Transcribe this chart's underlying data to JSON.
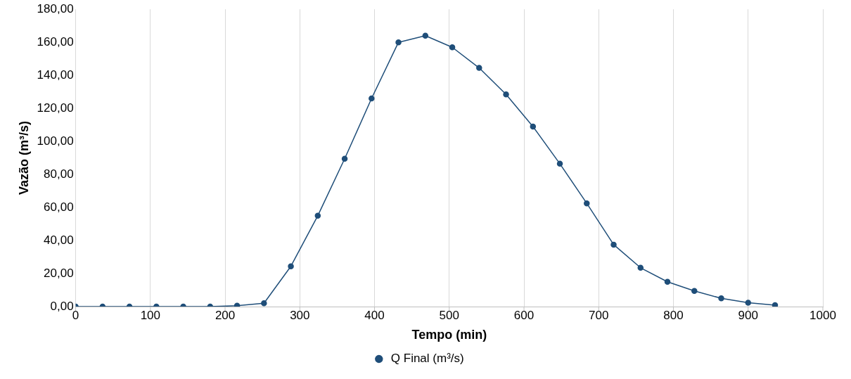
{
  "chart_data": {
    "type": "line",
    "xlabel": "Tempo (min)",
    "ylabel": "Vazão (m³/s)",
    "x": [
      0,
      36,
      72,
      108,
      144,
      180,
      216,
      252,
      288,
      324,
      360,
      396,
      432,
      468,
      504,
      540,
      576,
      612,
      648,
      684,
      720,
      756,
      792,
      828,
      864,
      900,
      936
    ],
    "series": [
      {
        "name": "Q Final (m³/s)",
        "color": "#1f4e79",
        "values": [
          0,
          0,
          0,
          0,
          0,
          0,
          0.5,
          2,
          24.4,
          55,
          89.5,
          126,
          160,
          164,
          157,
          144.5,
          128.5,
          109,
          86.5,
          62.5,
          37.5,
          23.5,
          15,
          9.5,
          5,
          2.3,
          0.9
        ]
      }
    ],
    "xlim": [
      0,
      1000
    ],
    "xticks": [
      0,
      100,
      200,
      300,
      400,
      500,
      600,
      700,
      800,
      900,
      1000
    ],
    "ylim": [
      0,
      180
    ],
    "yticks": [
      {
        "value": 0,
        "label": "0,00"
      },
      {
        "value": 20,
        "label": "20,00"
      },
      {
        "value": 40,
        "label": "40,00"
      },
      {
        "value": 60,
        "label": "60,00"
      },
      {
        "value": 80,
        "label": "80,00"
      },
      {
        "value": 100,
        "label": "100,00"
      },
      {
        "value": 120,
        "label": "120,00"
      },
      {
        "value": 140,
        "label": "140,00"
      },
      {
        "value": 160,
        "label": "160,00"
      },
      {
        "value": 180,
        "label": "180,00"
      }
    ],
    "grid": "x",
    "legend": "bottom",
    "marker": "circle",
    "line_style": "solid"
  }
}
